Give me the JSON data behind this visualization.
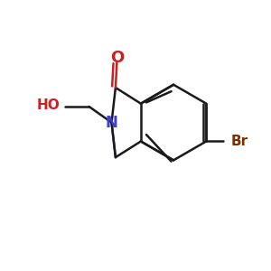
{
  "bg_color": "#ffffff",
  "bond_color": "#1a1a1a",
  "N_color": "#4040cc",
  "O_color": "#cc2020",
  "Br_color": "#7a3000",
  "HO_color": "#cc2020",
  "line_width": 1.8,
  "font_size": 12,
  "figsize": [
    3.0,
    3.0
  ],
  "dpi": 100,
  "xlim": [
    0,
    10
  ],
  "ylim": [
    0,
    10
  ]
}
